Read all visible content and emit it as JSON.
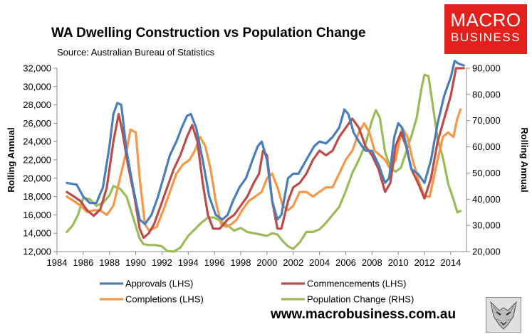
{
  "header": {
    "title": "WA Dwelling Construction vs Population Change",
    "subtitle": "Source: Australian Bureau of Statistics"
  },
  "logo": {
    "line1": "MACRO",
    "line2": "BUSINESS",
    "color": "#e3201b"
  },
  "footer": {
    "url": "www.macrobusiness.com.au"
  },
  "chart_data": {
    "type": "line",
    "ylabel": "Rolling Annual",
    "y2label": "Rolling Annual",
    "xlim": [
      1984,
      2015.2
    ],
    "ylim": [
      12000,
      32000
    ],
    "y2lim": [
      20000,
      90000
    ],
    "x_ticks": [
      1984,
      1986,
      1988,
      1990,
      1992,
      1994,
      1996,
      1998,
      2000,
      2002,
      2004,
      2006,
      2008,
      2010,
      2012,
      2014
    ],
    "y_ticks": [
      12000,
      14000,
      16000,
      18000,
      20000,
      22000,
      24000,
      26000,
      28000,
      30000,
      32000
    ],
    "y_tick_labels": [
      "12,000",
      "14,000",
      "16,000",
      "18,000",
      "20,000",
      "22,000",
      "24,000",
      "26,000",
      "28,000",
      "30,000",
      "32,000"
    ],
    "y2_ticks": [
      20000,
      30000,
      40000,
      50000,
      60000,
      70000,
      80000,
      90000
    ],
    "y2_tick_labels": [
      "20,000",
      "30,000",
      "40,000",
      "50,000",
      "60,000",
      "70,000",
      "80,000",
      "90,000"
    ],
    "grid": false,
    "legend_position": "bottom",
    "series": [
      {
        "name": "Approvals (LHS)",
        "axis": "left",
        "color": "#4a7ebb",
        "points": [
          [
            1984.75,
            19500
          ],
          [
            1985.5,
            19300
          ],
          [
            1986,
            18000
          ],
          [
            1986.5,
            17300
          ],
          [
            1987,
            17300
          ],
          [
            1987.5,
            19000
          ],
          [
            1988,
            23500
          ],
          [
            1988.3,
            27000
          ],
          [
            1988.6,
            28200
          ],
          [
            1988.9,
            28000
          ],
          [
            1989.3,
            23000
          ],
          [
            1989.8,
            19000
          ],
          [
            1990.3,
            15500
          ],
          [
            1990.7,
            15000
          ],
          [
            1991.2,
            16000
          ],
          [
            1991.7,
            18000
          ],
          [
            1992.2,
            20500
          ],
          [
            1992.6,
            22500
          ],
          [
            1993.1,
            24000
          ],
          [
            1993.5,
            25500
          ],
          [
            1993.9,
            26800
          ],
          [
            1994.2,
            27000
          ],
          [
            1994.6,
            25500
          ],
          [
            1995.1,
            22000
          ],
          [
            1995.6,
            18000
          ],
          [
            1996.1,
            16000
          ],
          [
            1996.6,
            15500
          ],
          [
            1997,
            16000
          ],
          [
            1997.4,
            17500
          ],
          [
            1997.9,
            19000
          ],
          [
            1998.4,
            20000
          ],
          [
            1998.9,
            22000
          ],
          [
            1999.3,
            23500
          ],
          [
            1999.6,
            24000
          ],
          [
            2000,
            22000
          ],
          [
            2000.4,
            17500
          ],
          [
            2000.8,
            15500
          ],
          [
            2001.1,
            16000
          ],
          [
            2001.6,
            20000
          ],
          [
            2002,
            20500
          ],
          [
            2002.4,
            20500
          ],
          [
            2002.8,
            21500
          ],
          [
            2003.2,
            22500
          ],
          [
            2003.6,
            23500
          ],
          [
            2004,
            24000
          ],
          [
            2004.5,
            23800
          ],
          [
            2005,
            24500
          ],
          [
            2005.5,
            25500
          ],
          [
            2005.9,
            27500
          ],
          [
            2006.2,
            27000
          ],
          [
            2006.6,
            25000
          ],
          [
            2007,
            24000
          ],
          [
            2007.5,
            23000
          ],
          [
            2008,
            23000
          ],
          [
            2008.5,
            21500
          ],
          [
            2009,
            19500
          ],
          [
            2009.3,
            20000
          ],
          [
            2009.7,
            24500
          ],
          [
            2010,
            26000
          ],
          [
            2010.3,
            25500
          ],
          [
            2010.7,
            23000
          ],
          [
            2011,
            21000
          ],
          [
            2011.5,
            20500
          ],
          [
            2012,
            19500
          ],
          [
            2012.5,
            22000
          ],
          [
            2013,
            26000
          ],
          [
            2013.5,
            29000
          ],
          [
            2014,
            31000
          ],
          [
            2014.3,
            32800
          ],
          [
            2014.6,
            32500
          ],
          [
            2015,
            32300
          ]
        ]
      },
      {
        "name": "Commencements (LHS)",
        "axis": "left",
        "color": "#be4b48",
        "points": [
          [
            1984.75,
            18500
          ],
          [
            1985.3,
            18000
          ],
          [
            1985.8,
            17500
          ],
          [
            1986.3,
            16500
          ],
          [
            1986.8,
            15900
          ],
          [
            1987.3,
            16600
          ],
          [
            1987.8,
            19000
          ],
          [
            1988.3,
            24000
          ],
          [
            1988.7,
            27000
          ],
          [
            1989,
            25000
          ],
          [
            1989.4,
            21500
          ],
          [
            1989.9,
            18000
          ],
          [
            1990.3,
            14500
          ],
          [
            1990.6,
            13500
          ],
          [
            1991,
            14000
          ],
          [
            1991.4,
            15000
          ],
          [
            1991.9,
            17000
          ],
          [
            1992.4,
            19000
          ],
          [
            1992.9,
            21000
          ],
          [
            1993.4,
            22500
          ],
          [
            1993.9,
            24500
          ],
          [
            1994.3,
            25800
          ],
          [
            1994.7,
            24000
          ],
          [
            1995.1,
            19500
          ],
          [
            1995.5,
            16000
          ],
          [
            1995.9,
            14500
          ],
          [
            1996.4,
            14500
          ],
          [
            1997,
            15500
          ],
          [
            1997.5,
            16000
          ],
          [
            1998,
            17000
          ],
          [
            1998.5,
            18000
          ],
          [
            1999,
            19500
          ],
          [
            1999.4,
            20500
          ],
          [
            1999.7,
            23000
          ],
          [
            2000,
            22500
          ],
          [
            2000.4,
            17500
          ],
          [
            2000.8,
            14500
          ],
          [
            2001.1,
            14500
          ],
          [
            2001.6,
            17500
          ],
          [
            2002,
            19000
          ],
          [
            2002.5,
            19500
          ],
          [
            2003,
            20500
          ],
          [
            2003.5,
            22000
          ],
          [
            2004,
            23000
          ],
          [
            2004.5,
            22500
          ],
          [
            2005,
            23000
          ],
          [
            2005.5,
            24500
          ],
          [
            2006,
            25500
          ],
          [
            2006.5,
            26500
          ],
          [
            2007,
            25500
          ],
          [
            2007.5,
            23500
          ],
          [
            2008,
            22500
          ],
          [
            2008.5,
            21000
          ],
          [
            2009,
            18500
          ],
          [
            2009.4,
            19500
          ],
          [
            2009.8,
            23500
          ],
          [
            2010.2,
            25000
          ],
          [
            2010.6,
            23500
          ],
          [
            2011,
            21000
          ],
          [
            2011.5,
            19500
          ],
          [
            2012,
            17800
          ],
          [
            2012.5,
            20000
          ],
          [
            2013,
            24000
          ],
          [
            2013.5,
            26500
          ],
          [
            2014,
            29000
          ],
          [
            2014.4,
            32000
          ],
          [
            2015,
            32000
          ]
        ]
      },
      {
        "name": "Completions (LHS)",
        "axis": "left",
        "color": "#f79646",
        "points": [
          [
            1984.75,
            18000
          ],
          [
            1985.3,
            17500
          ],
          [
            1985.8,
            17000
          ],
          [
            1986.3,
            16300
          ],
          [
            1986.8,
            16500
          ],
          [
            1987.3,
            16500
          ],
          [
            1987.8,
            16000
          ],
          [
            1988.3,
            17000
          ],
          [
            1988.8,
            20000
          ],
          [
            1989.3,
            23000
          ],
          [
            1989.6,
            25300
          ],
          [
            1990,
            25000
          ],
          [
            1990.3,
            20000
          ],
          [
            1990.7,
            15000
          ],
          [
            1991,
            14300
          ],
          [
            1991.6,
            14700
          ],
          [
            1992.1,
            16500
          ],
          [
            1992.6,
            18500
          ],
          [
            1993.1,
            20500
          ],
          [
            1993.6,
            21500
          ],
          [
            1994.1,
            22000
          ],
          [
            1994.5,
            23000
          ],
          [
            1994.9,
            24500
          ],
          [
            1995.3,
            23500
          ],
          [
            1995.7,
            21000
          ],
          [
            1996.1,
            17500
          ],
          [
            1996.5,
            15000
          ],
          [
            1996.9,
            14700
          ],
          [
            1997.3,
            15000
          ],
          [
            1997.7,
            15500
          ],
          [
            1998.1,
            16500
          ],
          [
            1998.6,
            17500
          ],
          [
            1999.1,
            18000
          ],
          [
            1999.6,
            18500
          ],
          [
            2000,
            20000
          ],
          [
            2000.4,
            20500
          ],
          [
            2000.8,
            19000
          ],
          [
            2001.2,
            17000
          ],
          [
            2001.6,
            16500
          ],
          [
            2002,
            17000
          ],
          [
            2002.5,
            18500
          ],
          [
            2003,
            18500
          ],
          [
            2003.5,
            18000
          ],
          [
            2004,
            18500
          ],
          [
            2004.5,
            19000
          ],
          [
            2005,
            19000
          ],
          [
            2005.5,
            20500
          ],
          [
            2006,
            22000
          ],
          [
            2006.5,
            23000
          ],
          [
            2007,
            25000
          ],
          [
            2007.4,
            26000
          ],
          [
            2007.8,
            25000
          ],
          [
            2008.2,
            23000
          ],
          [
            2008.6,
            22500
          ],
          [
            2009,
            22000
          ],
          [
            2009.4,
            21000
          ],
          [
            2009.8,
            22000
          ],
          [
            2010.3,
            25500
          ],
          [
            2010.7,
            24500
          ],
          [
            2011.1,
            22000
          ],
          [
            2011.6,
            19500
          ],
          [
            2012,
            18000
          ],
          [
            2012.4,
            18000
          ],
          [
            2012.7,
            20000
          ],
          [
            2013,
            22000
          ],
          [
            2013.4,
            24500
          ],
          [
            2013.8,
            25000
          ],
          [
            2014.2,
            24500
          ],
          [
            2014.5,
            26500
          ],
          [
            2014.75,
            27500
          ]
        ]
      },
      {
        "name": "Population Change (RHS)",
        "axis": "right",
        "color": "#9bbb59",
        "points": [
          [
            1984.75,
            27500
          ],
          [
            1985.2,
            30000
          ],
          [
            1985.6,
            34000
          ],
          [
            1986,
            40500
          ],
          [
            1986.5,
            40000
          ],
          [
            1987,
            37500
          ],
          [
            1987.5,
            38500
          ],
          [
            1988,
            41500
          ],
          [
            1988.3,
            45000
          ],
          [
            1988.8,
            44000
          ],
          [
            1989.3,
            41000
          ],
          [
            1989.8,
            33000
          ],
          [
            1990.3,
            25000
          ],
          [
            1990.6,
            22800
          ],
          [
            1991,
            22500
          ],
          [
            1991.5,
            22500
          ],
          [
            1992,
            22000
          ],
          [
            1992.4,
            20200
          ],
          [
            1992.9,
            20000
          ],
          [
            1993.4,
            21500
          ],
          [
            1994,
            26000
          ],
          [
            1994.5,
            28500
          ],
          [
            1995,
            31000
          ],
          [
            1995.5,
            33000
          ],
          [
            1996,
            33000
          ],
          [
            1996.5,
            31500
          ],
          [
            1997,
            30000
          ],
          [
            1997.5,
            28000
          ],
          [
            1998,
            29000
          ],
          [
            1998.5,
            27500
          ],
          [
            1999,
            27000
          ],
          [
            1999.5,
            26500
          ],
          [
            2000,
            26000
          ],
          [
            2000.4,
            27000
          ],
          [
            2000.8,
            26500
          ],
          [
            2001.2,
            24000
          ],
          [
            2001.6,
            22000
          ],
          [
            2002,
            21000
          ],
          [
            2002.5,
            23500
          ],
          [
            2003,
            27500
          ],
          [
            2003.5,
            27500
          ],
          [
            2004,
            28500
          ],
          [
            2004.5,
            31000
          ],
          [
            2005,
            34000
          ],
          [
            2005.5,
            37000
          ],
          [
            2006,
            43000
          ],
          [
            2006.5,
            50000
          ],
          [
            2007,
            55000
          ],
          [
            2007.5,
            61000
          ],
          [
            2008,
            70000
          ],
          [
            2008.3,
            74000
          ],
          [
            2008.6,
            71000
          ],
          [
            2009,
            58000
          ],
          [
            2009.4,
            52000
          ],
          [
            2009.8,
            50500
          ],
          [
            2010.2,
            52000
          ],
          [
            2010.6,
            58000
          ],
          [
            2011,
            64000
          ],
          [
            2011.4,
            71000
          ],
          [
            2011.8,
            83000
          ],
          [
            2012,
            87500
          ],
          [
            2012.3,
            87000
          ],
          [
            2012.6,
            77000
          ],
          [
            2013,
            63000
          ],
          [
            2013.4,
            56000
          ],
          [
            2013.8,
            46000
          ],
          [
            2014.2,
            40000
          ],
          [
            2014.5,
            35000
          ],
          [
            2014.75,
            35500
          ]
        ]
      }
    ]
  }
}
